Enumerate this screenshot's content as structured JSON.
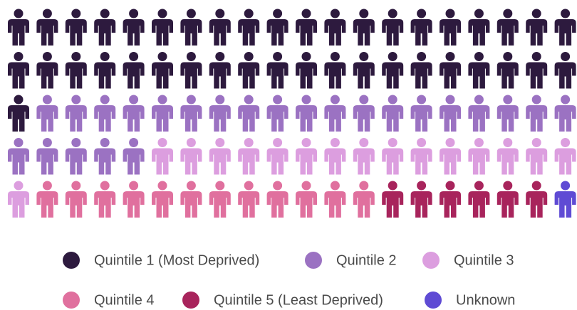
{
  "chart_data": {
    "type": "waffle",
    "categories": [
      "Quintile 1 (Most Deprived)",
      "Quintile 2",
      "Quintile 3",
      "Quintile 4",
      "Quintile 5 (Least Deprived)",
      "Unknown"
    ],
    "values": [
      41,
      24,
      16,
      12,
      6,
      1
    ],
    "colors": [
      "#2d1a3e",
      "#9b72c2",
      "#dc9edf",
      "#e0709e",
      "#a8245c",
      "#5f4bd4"
    ],
    "legend": "bottom"
  }
}
